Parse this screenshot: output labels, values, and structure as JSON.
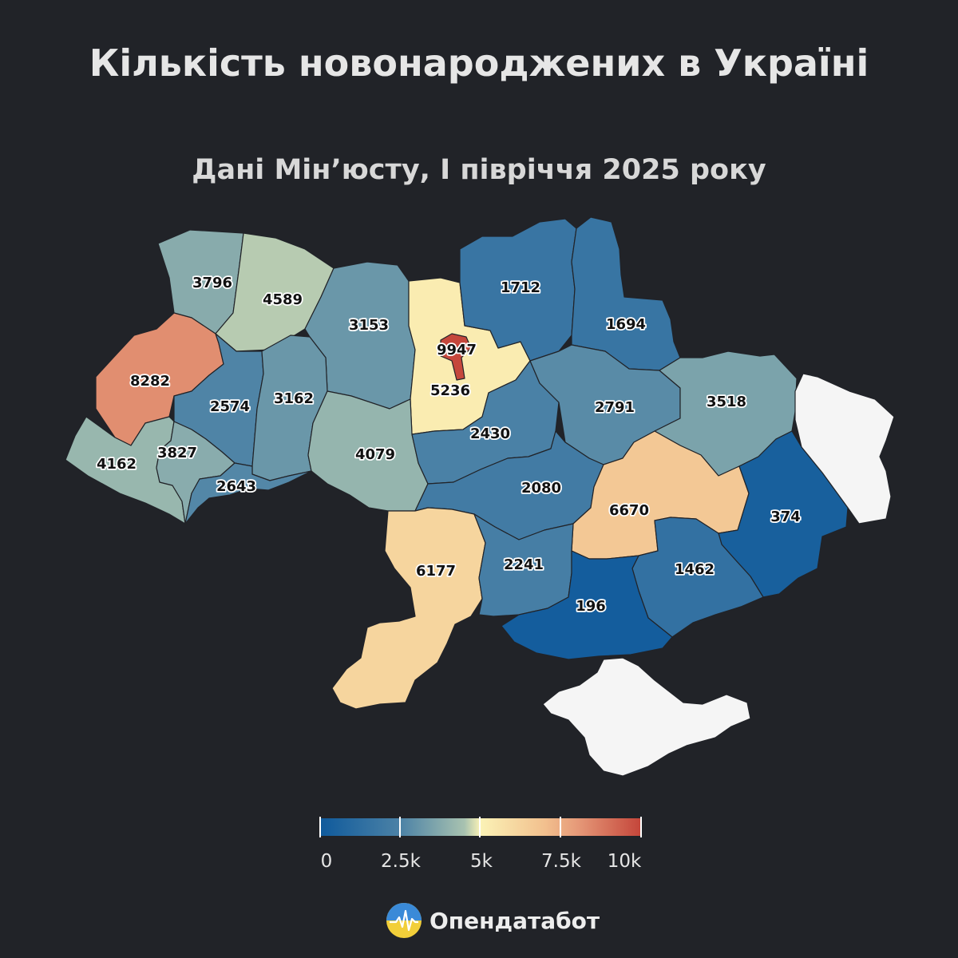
{
  "title": "Кількість новонароджених в Україні",
  "subtitle": "Дані Мін’юсту, І півріччя 2025 року",
  "brand": "Опендатабот",
  "legend": {
    "ticks": [
      "0",
      "2.5k",
      "5k",
      "7.5k",
      "10k"
    ],
    "min": 0,
    "max": 10000,
    "colors": [
      "#0f5a9c",
      "#4c82a6",
      "#a8c2b0",
      "#fbf2b6",
      "#f2c08e",
      "#e69a79",
      "#c4453a"
    ]
  },
  "chart_data": {
    "type": "choropleth",
    "unit": "births",
    "regions": [
      {
        "id": "volyn",
        "value": 3796
      },
      {
        "id": "rivne",
        "value": 4589
      },
      {
        "id": "zhytomyr",
        "value": 3153
      },
      {
        "id": "kyiv-oblast",
        "value": 5236
      },
      {
        "id": "kyiv-city",
        "value": 9947
      },
      {
        "id": "chernihiv",
        "value": 1712
      },
      {
        "id": "sumy",
        "value": 1694
      },
      {
        "id": "lviv",
        "value": 8282
      },
      {
        "id": "ternopil",
        "value": 2574
      },
      {
        "id": "khmelnytskyi",
        "value": 3162
      },
      {
        "id": "vinnytsia",
        "value": 4079
      },
      {
        "id": "cherkasy",
        "value": 2430
      },
      {
        "id": "poltava",
        "value": 2791
      },
      {
        "id": "kharkiv",
        "value": 3518
      },
      {
        "id": "zakarpattia",
        "value": 4162
      },
      {
        "id": "ivano-frankivsk",
        "value": 3827
      },
      {
        "id": "chernivtsi",
        "value": 2643
      },
      {
        "id": "kirovohrad",
        "value": 2080
      },
      {
        "id": "dnipropetrovsk",
        "value": 6670
      },
      {
        "id": "donetsk",
        "value": 374
      },
      {
        "id": "luhansk",
        "value": null
      },
      {
        "id": "odesa",
        "value": 6177
      },
      {
        "id": "mykolaiv",
        "value": 2241
      },
      {
        "id": "zaporizhzhia",
        "value": 1462
      },
      {
        "id": "kherson",
        "value": 196
      },
      {
        "id": "crimea",
        "value": null
      }
    ]
  }
}
